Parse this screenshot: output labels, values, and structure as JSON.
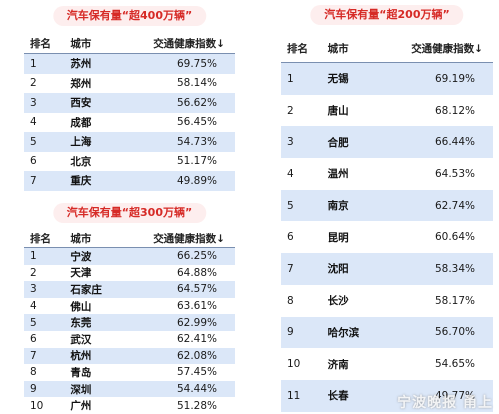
{
  "tables": [
    {
      "title": "汽车保有量“超400万辆”",
      "headers": {
        "rank": "排名",
        "city": "城市",
        "index": "交通健康指数↓"
      },
      "rows": [
        {
          "rank": "1",
          "city": "苏州",
          "value": "69.75%"
        },
        {
          "rank": "2",
          "city": "郑州",
          "value": "58.14%"
        },
        {
          "rank": "3",
          "city": "西安",
          "value": "56.62%"
        },
        {
          "rank": "4",
          "city": "成都",
          "value": "56.45%"
        },
        {
          "rank": "5",
          "city": "上海",
          "value": "54.73%"
        },
        {
          "rank": "6",
          "city": "北京",
          "value": "51.17%"
        },
        {
          "rank": "7",
          "city": "重庆",
          "value": "49.89%"
        }
      ]
    },
    {
      "title": "汽车保有量“超300万辆”",
      "headers": {
        "rank": "排名",
        "city": "城市",
        "index": "交通健康指数↓"
      },
      "rows": [
        {
          "rank": "1",
          "city": "宁波",
          "value": "66.25%"
        },
        {
          "rank": "2",
          "city": "天津",
          "value": "64.88%"
        },
        {
          "rank": "3",
          "city": "石家庄",
          "value": "64.57%"
        },
        {
          "rank": "4",
          "city": "佛山",
          "value": "63.61%"
        },
        {
          "rank": "5",
          "city": "东莞",
          "value": "62.99%"
        },
        {
          "rank": "6",
          "city": "武汉",
          "value": "62.41%"
        },
        {
          "rank": "7",
          "city": "杭州",
          "value": "62.08%"
        },
        {
          "rank": "8",
          "city": "青岛",
          "value": "57.45%"
        },
        {
          "rank": "9",
          "city": "深圳",
          "value": "54.44%"
        },
        {
          "rank": "10",
          "city": "广州",
          "value": "51.28%"
        }
      ]
    },
    {
      "title": "汽车保有量“超200万辆”",
      "headers": {
        "rank": "排名",
        "city": "城市",
        "index": "交通健康指数↓"
      },
      "rows": [
        {
          "rank": "1",
          "city": "无锡",
          "value": "69.19%"
        },
        {
          "rank": "2",
          "city": "唐山",
          "value": "68.12%"
        },
        {
          "rank": "3",
          "city": "合肥",
          "value": "66.44%"
        },
        {
          "rank": "4",
          "city": "温州",
          "value": "64.53%"
        },
        {
          "rank": "5",
          "city": "南京",
          "value": "62.74%"
        },
        {
          "rank": "6",
          "city": "昆明",
          "value": "60.64%"
        },
        {
          "rank": "7",
          "city": "沈阳",
          "value": "58.34%"
        },
        {
          "rank": "8",
          "city": "长沙",
          "value": "58.17%"
        },
        {
          "rank": "9",
          "city": "哈尔滨",
          "value": "56.70%"
        },
        {
          "rank": "10",
          "city": "济南",
          "value": "54.65%"
        },
        {
          "rank": "11",
          "city": "长春",
          "value": "49.77%"
        }
      ]
    }
  ],
  "watermark": "宁波晚报 甬上",
  "colors": {
    "title_text": "#d62a26",
    "title_bg": "#fdeeee",
    "alt_row": "#dbe7f8",
    "header_rule": "#7a8fb0"
  }
}
